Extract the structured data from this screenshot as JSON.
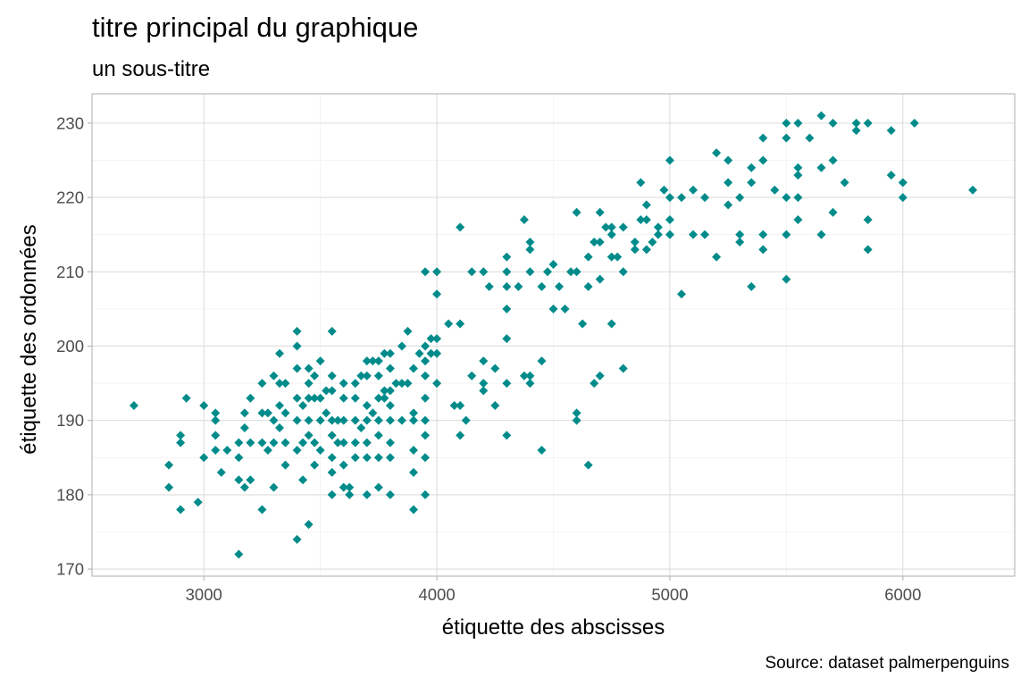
{
  "chart_data": {
    "type": "scatter",
    "title": "titre principal du graphique",
    "subtitle": "un sous-titre",
    "xlabel": "étiquette des abscisses",
    "ylabel": "étiquette des ordonnées",
    "caption": "Source: dataset palmerpenguins",
    "xlim": [
      2520,
      6480
    ],
    "ylim": [
      169.05,
      233.95
    ],
    "x_ticks": [
      3000,
      4000,
      5000,
      6000
    ],
    "x_tick_labels": [
      "3000",
      "4000",
      "5000",
      "6000"
    ],
    "y_ticks": [
      170,
      180,
      190,
      200,
      210,
      220,
      230
    ],
    "y_tick_labels": [
      "170",
      "180",
      "190",
      "200",
      "210",
      "220",
      "230"
    ],
    "grid": true,
    "legend": "none",
    "marker": "diamond",
    "point_color": "#008B8B",
    "points": [
      [
        2700,
        192
      ],
      [
        2850,
        184
      ],
      [
        2850,
        181
      ],
      [
        2900,
        188
      ],
      [
        2900,
        187
      ],
      [
        2900,
        178
      ],
      [
        2925,
        193
      ],
      [
        2975,
        179
      ],
      [
        3000,
        192
      ],
      [
        3000,
        185
      ],
      [
        3050,
        191
      ],
      [
        3050,
        190
      ],
      [
        3050,
        188
      ],
      [
        3050,
        186
      ],
      [
        3075,
        183
      ],
      [
        3100,
        186
      ],
      [
        3150,
        187
      ],
      [
        3150,
        185
      ],
      [
        3150,
        182
      ],
      [
        3150,
        172
      ],
      [
        3175,
        191
      ],
      [
        3175,
        189
      ],
      [
        3175,
        181
      ],
      [
        3200,
        193
      ],
      [
        3200,
        187
      ],
      [
        3200,
        182
      ],
      [
        3250,
        195
      ],
      [
        3250,
        191
      ],
      [
        3250,
        187
      ],
      [
        3250,
        178
      ],
      [
        3275,
        191
      ],
      [
        3275,
        186
      ],
      [
        3300,
        196
      ],
      [
        3300,
        190
      ],
      [
        3300,
        187
      ],
      [
        3300,
        181
      ],
      [
        3325,
        195
      ],
      [
        3325,
        192
      ],
      [
        3325,
        199
      ],
      [
        3325,
        189
      ],
      [
        3350,
        195
      ],
      [
        3350,
        191
      ],
      [
        3350,
        187
      ],
      [
        3350,
        184
      ],
      [
        3400,
        202
      ],
      [
        3400,
        200
      ],
      [
        3400,
        197
      ],
      [
        3400,
        193
      ],
      [
        3400,
        190
      ],
      [
        3400,
        186
      ],
      [
        3400,
        174
      ],
      [
        3425,
        192
      ],
      [
        3425,
        187
      ],
      [
        3425,
        182
      ],
      [
        3450,
        197
      ],
      [
        3450,
        195
      ],
      [
        3450,
        193
      ],
      [
        3450,
        190
      ],
      [
        3450,
        188
      ],
      [
        3450,
        176
      ],
      [
        3475,
        196
      ],
      [
        3475,
        193
      ],
      [
        3475,
        187
      ],
      [
        3475,
        184
      ],
      [
        3500,
        198
      ],
      [
        3500,
        193
      ],
      [
        3500,
        190
      ],
      [
        3500,
        186
      ],
      [
        3525,
        194
      ],
      [
        3525,
        191
      ],
      [
        3550,
        202
      ],
      [
        3550,
        196
      ],
      [
        3550,
        194
      ],
      [
        3550,
        190
      ],
      [
        3550,
        188
      ],
      [
        3550,
        185
      ],
      [
        3550,
        183
      ],
      [
        3550,
        180
      ],
      [
        3575,
        190
      ],
      [
        3575,
        187
      ],
      [
        3600,
        195
      ],
      [
        3600,
        193
      ],
      [
        3600,
        190
      ],
      [
        3600,
        187
      ],
      [
        3600,
        184
      ],
      [
        3600,
        181
      ],
      [
        3625,
        180
      ],
      [
        3625,
        181
      ],
      [
        3650,
        195
      ],
      [
        3650,
        193
      ],
      [
        3650,
        190
      ],
      [
        3650,
        187
      ],
      [
        3650,
        185
      ],
      [
        3675,
        196
      ],
      [
        3675,
        189
      ],
      [
        3700,
        198
      ],
      [
        3700,
        196
      ],
      [
        3700,
        192
      ],
      [
        3700,
        190
      ],
      [
        3700,
        187
      ],
      [
        3700,
        185
      ],
      [
        3700,
        180
      ],
      [
        3725,
        198
      ],
      [
        3725,
        191
      ],
      [
        3750,
        198
      ],
      [
        3750,
        196
      ],
      [
        3750,
        193
      ],
      [
        3750,
        190
      ],
      [
        3750,
        188
      ],
      [
        3750,
        185
      ],
      [
        3750,
        181
      ],
      [
        3775,
        199
      ],
      [
        3775,
        194
      ],
      [
        3775,
        193
      ],
      [
        3800,
        199
      ],
      [
        3800,
        197
      ],
      [
        3800,
        194
      ],
      [
        3800,
        192
      ],
      [
        3800,
        190
      ],
      [
        3800,
        187
      ],
      [
        3800,
        185
      ],
      [
        3800,
        180
      ],
      [
        3825,
        195
      ],
      [
        3850,
        200
      ],
      [
        3850,
        195
      ],
      [
        3850,
        190
      ],
      [
        3875,
        202
      ],
      [
        3875,
        195
      ],
      [
        3900,
        197
      ],
      [
        3900,
        191
      ],
      [
        3900,
        190
      ],
      [
        3900,
        186
      ],
      [
        3900,
        183
      ],
      [
        3900,
        178
      ],
      [
        3925,
        199
      ],
      [
        3950,
        210
      ],
      [
        3950,
        200
      ],
      [
        3950,
        198
      ],
      [
        3950,
        196
      ],
      [
        3950,
        193
      ],
      [
        3950,
        190
      ],
      [
        3950,
        188
      ],
      [
        3950,
        185
      ],
      [
        3950,
        180
      ],
      [
        3975,
        201
      ],
      [
        3975,
        199
      ],
      [
        4000,
        210
      ],
      [
        4000,
        207
      ],
      [
        4000,
        201
      ],
      [
        4000,
        199
      ],
      [
        4000,
        195
      ],
      [
        4050,
        203
      ],
      [
        4075,
        192
      ],
      [
        4100,
        216
      ],
      [
        4100,
        203
      ],
      [
        4100,
        192
      ],
      [
        4100,
        188
      ],
      [
        4125,
        190
      ],
      [
        4150,
        210
      ],
      [
        4150,
        196
      ],
      [
        4200,
        210
      ],
      [
        4200,
        198
      ],
      [
        4200,
        195
      ],
      [
        4200,
        194
      ],
      [
        4225,
        208
      ],
      [
        4250,
        197
      ],
      [
        4250,
        192
      ],
      [
        4300,
        212
      ],
      [
        4300,
        210
      ],
      [
        4300,
        208
      ],
      [
        4300,
        205
      ],
      [
        4300,
        201
      ],
      [
        4300,
        195
      ],
      [
        4300,
        188
      ],
      [
        4350,
        208
      ],
      [
        4375,
        217
      ],
      [
        4375,
        196
      ],
      [
        4400,
        214
      ],
      [
        4400,
        213
      ],
      [
        4400,
        210
      ],
      [
        4400,
        196
      ],
      [
        4400,
        195
      ],
      [
        4450,
        208
      ],
      [
        4450,
        198
      ],
      [
        4450,
        186
      ],
      [
        4475,
        210
      ],
      [
        4500,
        211
      ],
      [
        4500,
        205
      ],
      [
        4525,
        208
      ],
      [
        4550,
        205
      ],
      [
        4575,
        210
      ],
      [
        4600,
        218
      ],
      [
        4600,
        210
      ],
      [
        4600,
        191
      ],
      [
        4600,
        190
      ],
      [
        4625,
        203
      ],
      [
        4650,
        212
      ],
      [
        4650,
        208
      ],
      [
        4650,
        184
      ],
      [
        4675,
        214
      ],
      [
        4675,
        195
      ],
      [
        4700,
        218
      ],
      [
        4700,
        214
      ],
      [
        4700,
        209
      ],
      [
        4700,
        196
      ],
      [
        4725,
        216
      ],
      [
        4750,
        216
      ],
      [
        4750,
        212
      ],
      [
        4750,
        215
      ],
      [
        4750,
        203
      ],
      [
        4775,
        212
      ],
      [
        4800,
        216
      ],
      [
        4800,
        210
      ],
      [
        4800,
        197
      ],
      [
        4850,
        214
      ],
      [
        4850,
        213
      ],
      [
        4875,
        222
      ],
      [
        4875,
        217
      ],
      [
        4900,
        219
      ],
      [
        4900,
        217
      ],
      [
        4900,
        213
      ],
      [
        4925,
        214
      ],
      [
        4950,
        216
      ],
      [
        4950,
        215
      ],
      [
        4975,
        221
      ],
      [
        5000,
        225
      ],
      [
        5000,
        220
      ],
      [
        5000,
        217
      ],
      [
        5000,
        215
      ],
      [
        5050,
        220
      ],
      [
        5050,
        207
      ],
      [
        5100,
        221
      ],
      [
        5100,
        215
      ],
      [
        5150,
        220
      ],
      [
        5150,
        215
      ],
      [
        5200,
        226
      ],
      [
        5200,
        212
      ],
      [
        5250,
        225
      ],
      [
        5250,
        222
      ],
      [
        5250,
        219
      ],
      [
        5300,
        220
      ],
      [
        5300,
        215
      ],
      [
        5300,
        214
      ],
      [
        5350,
        224
      ],
      [
        5350,
        222
      ],
      [
        5350,
        208
      ],
      [
        5400,
        228
      ],
      [
        5400,
        225
      ],
      [
        5400,
        215
      ],
      [
        5400,
        213
      ],
      [
        5450,
        221
      ],
      [
        5500,
        230
      ],
      [
        5500,
        228
      ],
      [
        5500,
        220
      ],
      [
        5500,
        215
      ],
      [
        5500,
        209
      ],
      [
        5550,
        230
      ],
      [
        5550,
        224
      ],
      [
        5550,
        223
      ],
      [
        5550,
        220
      ],
      [
        5550,
        217
      ],
      [
        5600,
        228
      ],
      [
        5650,
        231
      ],
      [
        5650,
        224
      ],
      [
        5650,
        215
      ],
      [
        5700,
        230
      ],
      [
        5700,
        225
      ],
      [
        5700,
        218
      ],
      [
        5750,
        222
      ],
      [
        5800,
        230
      ],
      [
        5800,
        229
      ],
      [
        5850,
        230
      ],
      [
        5850,
        217
      ],
      [
        5850,
        213
      ],
      [
        5950,
        229
      ],
      [
        5950,
        223
      ],
      [
        6000,
        222
      ],
      [
        6000,
        220
      ],
      [
        6050,
        230
      ],
      [
        6300,
        221
      ]
    ]
  }
}
